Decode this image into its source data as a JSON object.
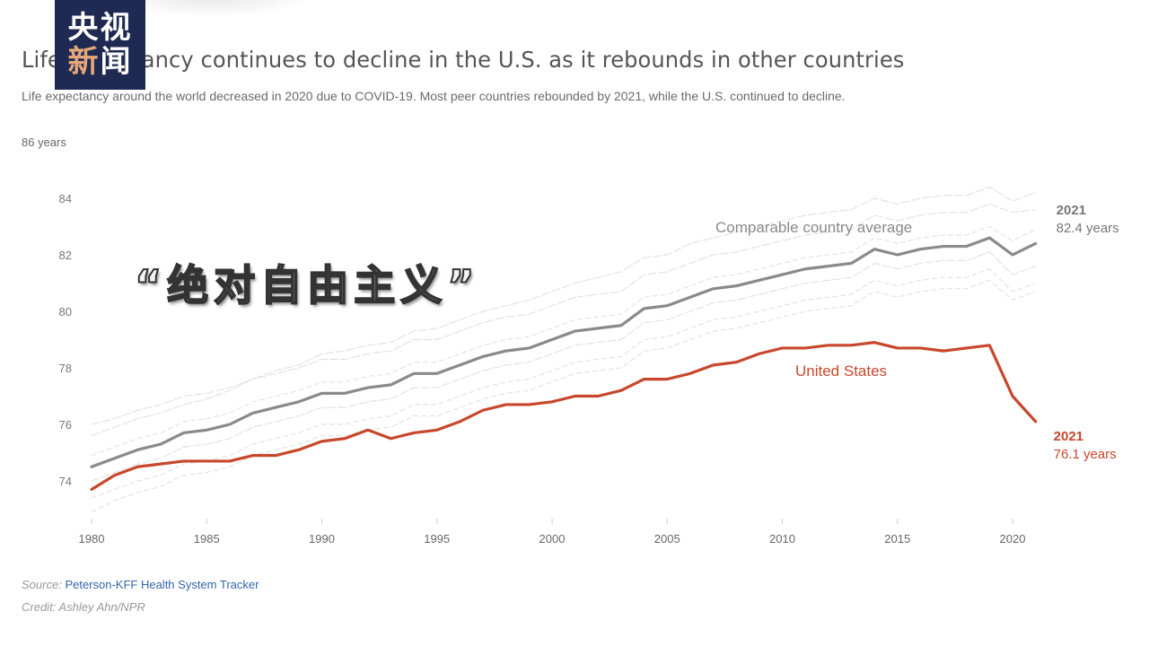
{
  "watermark": {
    "line1": "央视",
    "line2_a": "新",
    "line2_b": "闻"
  },
  "overlay_caption": "“绝对自由主义”",
  "header": {
    "title": "Life expectancy continues to decline in the U.S. as it rebounds in other countries",
    "subtitle": "Life expectancy around the world decreased in 2020 due to COVID-19. Most peer countries rebounded by 2021, while the U.S. continued to decline."
  },
  "footer": {
    "source_label": "Source:",
    "source_link": "Peterson-KFF Health System Tracker",
    "credit": "Credit: Ashley Ahn/NPR"
  },
  "chart_data": {
    "type": "line",
    "title": "Life expectancy continues to decline in the U.S. as it rebounds in other countries",
    "subtitle": "Life expectancy around the world decreased in 2020 due to COVID-19. Most peer countries rebounded by 2021, while the U.S. continued to decline.",
    "xlabel": "",
    "ylabel": "years",
    "y_unit_label": "86 years",
    "xlim": [
      1980,
      2021
    ],
    "ylim": [
      73,
      86
    ],
    "x_ticks": [
      1980,
      1985,
      1990,
      1995,
      2000,
      2005,
      2010,
      2015,
      2020
    ],
    "x_tick_labels": [
      "1980",
      "1985",
      "1990",
      "1995",
      "2000",
      "2005",
      "2010",
      "2015",
      "2020"
    ],
    "y_ticks": [
      74,
      76,
      78,
      80,
      82,
      84
    ],
    "y_tick_labels": [
      "74",
      "76",
      "78",
      "80",
      "82",
      "84"
    ],
    "grid": false,
    "x": [
      1980,
      1981,
      1982,
      1983,
      1984,
      1985,
      1986,
      1987,
      1988,
      1989,
      1990,
      1991,
      1992,
      1993,
      1994,
      1995,
      1996,
      1997,
      1998,
      1999,
      2000,
      2001,
      2002,
      2003,
      2004,
      2005,
      2006,
      2007,
      2008,
      2009,
      2010,
      2011,
      2012,
      2013,
      2014,
      2015,
      2016,
      2017,
      2018,
      2019,
      2020,
      2021
    ],
    "series": [
      {
        "name": "Comparable country average",
        "color": "#8a8a8a",
        "values": [
          74.5,
          74.8,
          75.1,
          75.3,
          75.7,
          75.8,
          76.0,
          76.4,
          76.6,
          76.8,
          77.1,
          77.1,
          77.3,
          77.4,
          77.8,
          77.8,
          78.1,
          78.4,
          78.6,
          78.7,
          79.0,
          79.3,
          79.4,
          79.5,
          80.1,
          80.2,
          80.5,
          80.8,
          80.9,
          81.1,
          81.3,
          81.5,
          81.6,
          81.7,
          82.2,
          82.0,
          82.2,
          82.3,
          82.3,
          82.6,
          82.0,
          82.4
        ],
        "end_label_year": "2021",
        "end_label_value": "82.4 years"
      },
      {
        "name": "United States",
        "color": "#c8472c",
        "values": [
          73.7,
          74.2,
          74.5,
          74.6,
          74.7,
          74.7,
          74.7,
          74.9,
          74.9,
          75.1,
          75.4,
          75.5,
          75.8,
          75.5,
          75.7,
          75.8,
          76.1,
          76.5,
          76.7,
          76.7,
          76.8,
          77.0,
          77.0,
          77.2,
          77.6,
          77.6,
          77.8,
          78.1,
          78.2,
          78.5,
          78.7,
          78.7,
          78.8,
          78.8,
          78.9,
          78.7,
          78.7,
          78.6,
          78.7,
          78.8,
          77.0,
          76.1
        ],
        "end_label_year": "2021",
        "end_label_value": "76.1 years"
      }
    ],
    "background_series_note": "Individual peer country lines shown in faint gray",
    "background_series": [
      {
        "name": "peer-1",
        "values": [
          75.6,
          75.9,
          76.2,
          76.4,
          76.7,
          76.9,
          77.2,
          77.6,
          77.9,
          78.1,
          78.5,
          78.6,
          78.8,
          78.9,
          79.3,
          79.4,
          79.7,
          80.0,
          80.2,
          80.4,
          80.7,
          81.0,
          81.2,
          81.4,
          81.9,
          82.0,
          82.4,
          82.6,
          82.8,
          83.0,
          83.2,
          83.4,
          83.5,
          83.6,
          84.0,
          83.8,
          84.0,
          84.1,
          84.1,
          84.4,
          83.9,
          84.2
        ]
      },
      {
        "name": "peer-2",
        "values": [
          74.9,
          75.2,
          75.5,
          75.7,
          76.1,
          76.2,
          76.4,
          76.8,
          77.0,
          77.2,
          77.5,
          77.5,
          77.7,
          77.8,
          78.2,
          78.2,
          78.5,
          78.8,
          79.0,
          79.1,
          79.4,
          79.7,
          79.8,
          79.9,
          80.5,
          80.6,
          80.9,
          81.2,
          81.3,
          81.5,
          81.7,
          81.9,
          82.0,
          82.1,
          82.6,
          82.4,
          82.6,
          82.7,
          82.7,
          83.0,
          82.5,
          82.9
        ]
      },
      {
        "name": "peer-3",
        "values": [
          74.0,
          74.3,
          74.6,
          74.8,
          75.2,
          75.3,
          75.5,
          75.9,
          76.1,
          76.3,
          76.6,
          76.6,
          76.8,
          76.9,
          77.3,
          77.3,
          77.6,
          77.9,
          78.1,
          78.2,
          78.5,
          78.8,
          78.9,
          79.0,
          79.6,
          79.7,
          80.0,
          80.3,
          80.4,
          80.6,
          80.8,
          81.0,
          81.1,
          81.2,
          81.7,
          81.5,
          81.7,
          81.8,
          81.8,
          82.1,
          81.3,
          81.6
        ]
      },
      {
        "name": "peer-4",
        "values": [
          73.4,
          73.7,
          74.0,
          74.2,
          74.6,
          74.7,
          74.9,
          75.3,
          75.5,
          75.7,
          76.0,
          76.0,
          76.2,
          76.3,
          76.7,
          76.7,
          77.0,
          77.3,
          77.5,
          77.6,
          77.9,
          78.2,
          78.3,
          78.4,
          79.0,
          79.1,
          79.4,
          79.7,
          79.8,
          80.0,
          80.2,
          80.4,
          80.5,
          80.6,
          81.1,
          80.9,
          81.1,
          81.2,
          81.2,
          81.5,
          80.7,
          81.0
        ]
      },
      {
        "name": "peer-5",
        "values": [
          76.0,
          76.2,
          76.5,
          76.7,
          77.0,
          77.1,
          77.3,
          77.6,
          77.8,
          78.0,
          78.3,
          78.3,
          78.5,
          78.6,
          79.0,
          79.0,
          79.3,
          79.6,
          79.8,
          79.9,
          80.2,
          80.5,
          80.6,
          80.7,
          81.3,
          81.4,
          81.7,
          82.0,
          82.1,
          82.3,
          82.5,
          82.7,
          82.8,
          82.9,
          83.4,
          83.2,
          83.4,
          83.5,
          83.5,
          83.8,
          83.5,
          83.6
        ]
      },
      {
        "name": "peer-6",
        "values": [
          72.9,
          73.3,
          73.6,
          73.8,
          74.2,
          74.3,
          74.5,
          74.9,
          75.1,
          75.3,
          75.6,
          75.6,
          75.8,
          75.9,
          76.3,
          76.3,
          76.6,
          76.9,
          77.1,
          77.2,
          77.5,
          77.8,
          77.9,
          78.0,
          78.6,
          78.7,
          79.0,
          79.3,
          79.4,
          79.6,
          79.8,
          80.0,
          80.1,
          80.2,
          80.7,
          80.5,
          80.7,
          80.8,
          80.8,
          81.1,
          80.4,
          80.7
        ]
      }
    ]
  }
}
